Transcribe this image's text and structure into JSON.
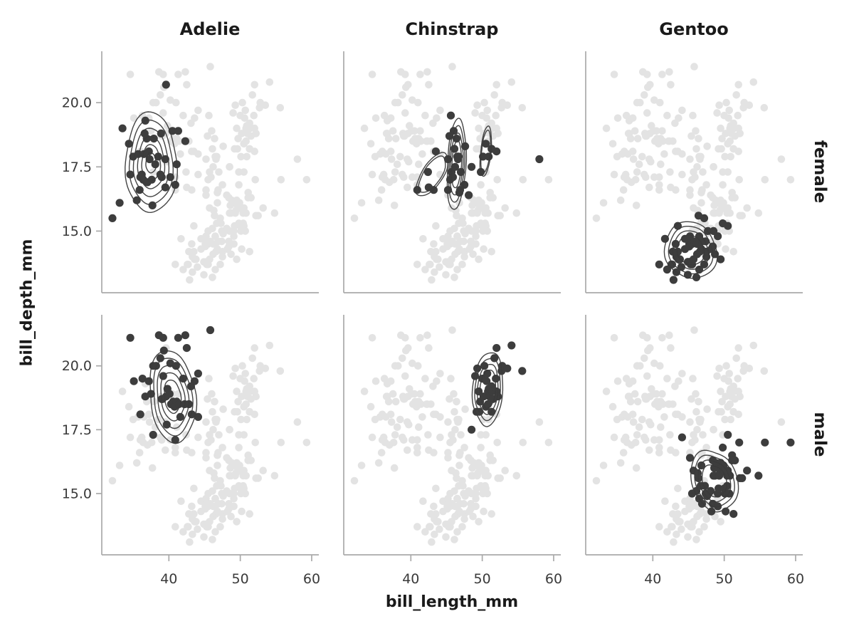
{
  "chart_data": {
    "type": "scatter",
    "title": "",
    "xlabel": "bill_length_mm",
    "ylabel": "bill_depth_mm",
    "col_facets": [
      "Adelie",
      "Chinstrap",
      "Gentoo"
    ],
    "row_facets": [
      "female",
      "male"
    ],
    "facet": {
      "columns": "species",
      "rows": "sex"
    },
    "xlim": [
      30.6,
      61.0
    ],
    "ylim": [
      12.6,
      22.0
    ],
    "xticks": [
      40,
      50,
      60
    ],
    "xtick_labels": [
      "40",
      "50",
      "60"
    ],
    "yticks": [
      20.0,
      17.5,
      15.0
    ],
    "ytick_labels": [
      "20.0",
      "17.5",
      "15.0"
    ],
    "grid": false,
    "legend": "none",
    "background_layer": "all penguins shown in light gray in every facet; facet subset overplotted dark with kde contours",
    "colors": {
      "background_point": "#e3e3e3",
      "highlight_point": "#3d3d3d",
      "contour": "#3a3a3a",
      "spine": "#aaaaaa",
      "tick_text": "#3a3a3a",
      "label_text": "#1a1a1a"
    },
    "groups": [
      {
        "species": "Adelie",
        "sex": "female",
        "points": [
          [
            32.1,
            15.5
          ],
          [
            33.1,
            16.1
          ],
          [
            33.5,
            19.0
          ],
          [
            34.4,
            18.4
          ],
          [
            34.6,
            17.2
          ],
          [
            35.0,
            17.9
          ],
          [
            35.5,
            16.2
          ],
          [
            35.7,
            18.0
          ],
          [
            35.9,
            16.6
          ],
          [
            36.0,
            17.1
          ],
          [
            36.2,
            17.2
          ],
          [
            36.4,
            17.0
          ],
          [
            36.5,
            18.0
          ],
          [
            36.6,
            18.8
          ],
          [
            36.7,
            19.3
          ],
          [
            36.9,
            18.6
          ],
          [
            37.0,
            16.9
          ],
          [
            37.2,
            18.1
          ],
          [
            37.3,
            17.8
          ],
          [
            37.6,
            17.0
          ],
          [
            37.7,
            16.0
          ],
          [
            37.9,
            18.6
          ],
          [
            38.1,
            17.6
          ],
          [
            38.5,
            17.9
          ],
          [
            38.8,
            17.2
          ],
          [
            38.9,
            18.8
          ],
          [
            39.0,
            17.1
          ],
          [
            39.5,
            16.7
          ],
          [
            39.5,
            17.8
          ],
          [
            39.6,
            20.7
          ],
          [
            40.2,
            17.1
          ],
          [
            40.5,
            18.9
          ],
          [
            40.9,
            16.8
          ],
          [
            41.1,
            17.6
          ],
          [
            41.3,
            18.9
          ],
          [
            42.3,
            18.5
          ]
        ],
        "contour_blobs": [
          {
            "cx": 37.5,
            "cy": 17.65,
            "rx": 3.6,
            "ry": 1.95,
            "rot": 3,
            "levels": 6,
            "w": 0.1
          }
        ]
      },
      {
        "species": "Chinstrap",
        "sex": "female",
        "points": [
          [
            40.9,
            16.6
          ],
          [
            42.4,
            17.3
          ],
          [
            42.5,
            16.7
          ],
          [
            43.2,
            16.6
          ],
          [
            43.5,
            18.1
          ],
          [
            45.2,
            16.6
          ],
          [
            45.2,
            17.8
          ],
          [
            45.4,
            18.7
          ],
          [
            45.5,
            17.0
          ],
          [
            45.6,
            19.5
          ],
          [
            45.7,
            17.3
          ],
          [
            45.9,
            17.1
          ],
          [
            46.0,
            18.9
          ],
          [
            46.1,
            18.2
          ],
          [
            46.2,
            17.5
          ],
          [
            46.4,
            18.6
          ],
          [
            46.5,
            17.9
          ],
          [
            46.6,
            17.8
          ],
          [
            46.7,
            17.9
          ],
          [
            46.8,
            16.5
          ],
          [
            46.9,
            16.6
          ],
          [
            47.0,
            17.3
          ],
          [
            47.5,
            16.8
          ],
          [
            47.6,
            18.3
          ],
          [
            48.1,
            16.4
          ],
          [
            48.5,
            17.5
          ],
          [
            49.8,
            17.3
          ],
          [
            50.1,
            17.9
          ],
          [
            50.5,
            18.4
          ],
          [
            50.9,
            17.9
          ],
          [
            51.3,
            18.2
          ],
          [
            52.0,
            18.1
          ],
          [
            58.0,
            17.8
          ]
        ],
        "contour_blobs": [
          {
            "cx": 43.0,
            "cy": 17.2,
            "rx": 1.5,
            "ry": 0.95,
            "rot": 35,
            "levels": 2,
            "w": 0.08
          },
          {
            "cx": 46.4,
            "cy": 17.6,
            "rx": 1.35,
            "ry": 1.7,
            "rot": 3,
            "levels": 4,
            "w": 0.09
          },
          {
            "cx": 50.5,
            "cy": 18.1,
            "rx": 0.75,
            "ry": 0.95,
            "rot": 6,
            "levels": 2,
            "w": 0.07
          }
        ]
      },
      {
        "species": "Gentoo",
        "sex": "female",
        "points": [
          [
            40.9,
            13.7
          ],
          [
            41.7,
            14.7
          ],
          [
            42.0,
            13.5
          ],
          [
            42.6,
            13.7
          ],
          [
            42.7,
            13.7
          ],
          [
            42.8,
            14.2
          ],
          [
            42.9,
            13.1
          ],
          [
            43.2,
            14.5
          ],
          [
            43.3,
            13.4
          ],
          [
            43.3,
            14.0
          ],
          [
            43.5,
            14.2
          ],
          [
            43.5,
            15.2
          ],
          [
            43.6,
            13.9
          ],
          [
            43.8,
            13.9
          ],
          [
            44.0,
            13.6
          ],
          [
            44.5,
            14.3
          ],
          [
            44.5,
            14.7
          ],
          [
            44.9,
            13.3
          ],
          [
            44.9,
            13.8
          ],
          [
            45.1,
            14.5
          ],
          [
            45.1,
            14.4
          ],
          [
            45.2,
            13.8
          ],
          [
            45.2,
            14.8
          ],
          [
            45.3,
            13.7
          ],
          [
            45.3,
            13.8
          ],
          [
            45.4,
            14.6
          ],
          [
            45.5,
            13.7
          ],
          [
            45.5,
            14.5
          ],
          [
            45.7,
            13.9
          ],
          [
            45.8,
            14.6
          ],
          [
            46.1,
            13.2
          ],
          [
            46.2,
            14.5
          ],
          [
            46.2,
            14.1
          ],
          [
            46.4,
            15.6
          ],
          [
            46.5,
            13.5
          ],
          [
            46.5,
            14.5
          ],
          [
            46.5,
            14.8
          ],
          [
            46.6,
            14.2
          ],
          [
            46.8,
            14.3
          ],
          [
            46.9,
            14.6
          ],
          [
            47.2,
            13.7
          ],
          [
            47.2,
            15.5
          ],
          [
            47.4,
            14.6
          ],
          [
            47.5,
            14.0
          ],
          [
            47.5,
            14.2
          ],
          [
            47.7,
            15.0
          ],
          [
            48.2,
            14.3
          ],
          [
            48.4,
            14.4
          ],
          [
            48.5,
            15.0
          ],
          [
            48.7,
            14.1
          ],
          [
            49.1,
            14.8
          ],
          [
            49.5,
            13.9
          ],
          [
            49.8,
            15.3
          ],
          [
            50.5,
            15.2
          ]
        ],
        "contour_blobs": [
          {
            "cx": 45.3,
            "cy": 14.25,
            "rx": 3.5,
            "ry": 1.15,
            "rot": -10,
            "levels": 4,
            "w": 0.09
          }
        ]
      },
      {
        "species": "Adelie",
        "sex": "male",
        "points": [
          [
            34.6,
            21.1
          ],
          [
            35.1,
            19.4
          ],
          [
            36.0,
            18.1
          ],
          [
            36.3,
            19.5
          ],
          [
            36.7,
            18.8
          ],
          [
            37.2,
            19.4
          ],
          [
            37.5,
            18.9
          ],
          [
            37.8,
            20.0
          ],
          [
            37.8,
            17.3
          ],
          [
            38.2,
            20.0
          ],
          [
            38.6,
            21.2
          ],
          [
            38.8,
            20.3
          ],
          [
            39.0,
            18.7
          ],
          [
            39.1,
            18.7
          ],
          [
            39.2,
            19.6
          ],
          [
            39.2,
            21.1
          ],
          [
            39.3,
            20.6
          ],
          [
            39.6,
            18.8
          ],
          [
            39.7,
            17.7
          ],
          [
            39.8,
            19.1
          ],
          [
            40.1,
            18.9
          ],
          [
            40.2,
            20.1
          ],
          [
            40.3,
            18.5
          ],
          [
            40.6,
            18.6
          ],
          [
            40.8,
            18.4
          ],
          [
            40.9,
            17.1
          ],
          [
            41.0,
            20.0
          ],
          [
            41.1,
            18.6
          ],
          [
            41.3,
            21.1
          ],
          [
            41.4,
            18.5
          ],
          [
            41.6,
            18.0
          ],
          [
            42.0,
            19.5
          ],
          [
            42.2,
            18.5
          ],
          [
            42.3,
            21.2
          ],
          [
            42.5,
            20.7
          ],
          [
            42.8,
            18.5
          ],
          [
            43.1,
            19.2
          ],
          [
            43.2,
            18.1
          ],
          [
            43.6,
            19.4
          ],
          [
            44.1,
            19.7
          ],
          [
            44.1,
            18.0
          ],
          [
            45.8,
            21.4
          ]
        ],
        "contour_blobs": [
          {
            "cx": 40.5,
            "cy": 18.8,
            "rx": 3.3,
            "ry": 1.75,
            "rot": -4,
            "levels": 5,
            "w": 0.1
          }
        ]
      },
      {
        "species": "Chinstrap",
        "sex": "male",
        "points": [
          [
            48.5,
            17.5
          ],
          [
            49.0,
            19.6
          ],
          [
            49.2,
            18.2
          ],
          [
            49.3,
            19.9
          ],
          [
            49.5,
            19.0
          ],
          [
            49.6,
            18.2
          ],
          [
            49.7,
            18.6
          ],
          [
            50.0,
            19.5
          ],
          [
            50.2,
            18.8
          ],
          [
            50.3,
            20.0
          ],
          [
            50.5,
            18.4
          ],
          [
            50.6,
            19.4
          ],
          [
            50.7,
            19.7
          ],
          [
            50.8,
            19.0
          ],
          [
            50.8,
            18.5
          ],
          [
            50.9,
            19.1
          ],
          [
            51.0,
            18.8
          ],
          [
            51.1,
            19.1
          ],
          [
            51.3,
            19.2
          ],
          [
            51.3,
            18.2
          ],
          [
            51.4,
            19.0
          ],
          [
            51.5,
            18.7
          ],
          [
            51.7,
            20.3
          ],
          [
            51.9,
            19.5
          ],
          [
            52.0,
            20.7
          ],
          [
            52.0,
            19.0
          ],
          [
            52.2,
            18.8
          ],
          [
            52.7,
            19.8
          ],
          [
            52.8,
            20.0
          ],
          [
            53.5,
            19.9
          ],
          [
            54.1,
            20.8
          ],
          [
            55.6,
            19.8
          ]
        ],
        "contour_blobs": [
          {
            "cx": 50.8,
            "cy": 19.1,
            "rx": 2.1,
            "ry": 1.45,
            "rot": 6,
            "levels": 4,
            "w": 0.09
          }
        ]
      },
      {
        "species": "Gentoo",
        "sex": "male",
        "points": [
          [
            44.1,
            17.2
          ],
          [
            45.2,
            16.4
          ],
          [
            45.5,
            15.0
          ],
          [
            45.7,
            15.9
          ],
          [
            46.1,
            15.1
          ],
          [
            46.3,
            15.8
          ],
          [
            46.4,
            15.6
          ],
          [
            46.5,
            14.8
          ],
          [
            46.7,
            15.3
          ],
          [
            46.8,
            16.1
          ],
          [
            46.9,
            14.6
          ],
          [
            47.3,
            15.3
          ],
          [
            47.4,
            15.0
          ],
          [
            47.6,
            14.9
          ],
          [
            47.8,
            15.0
          ],
          [
            48.1,
            15.1
          ],
          [
            48.2,
            14.3
          ],
          [
            48.4,
            14.6
          ],
          [
            48.4,
            16.3
          ],
          [
            48.5,
            15.7
          ],
          [
            48.6,
            16.0
          ],
          [
            48.7,
            15.7
          ],
          [
            48.8,
            16.2
          ],
          [
            49.0,
            16.1
          ],
          [
            49.1,
            15.0
          ],
          [
            49.1,
            14.5
          ],
          [
            49.2,
            15.2
          ],
          [
            49.3,
            15.7
          ],
          [
            49.4,
            15.8
          ],
          [
            49.5,
            16.2
          ],
          [
            49.6,
            16.0
          ],
          [
            49.8,
            15.9
          ],
          [
            49.8,
            16.8
          ],
          [
            49.9,
            16.1
          ],
          [
            50.0,
            15.2
          ],
          [
            50.0,
            15.9
          ],
          [
            50.1,
            15.0
          ],
          [
            50.2,
            14.3
          ],
          [
            50.4,
            15.7
          ],
          [
            50.4,
            15.3
          ],
          [
            50.5,
            15.9
          ],
          [
            50.5,
            17.3
          ],
          [
            50.7,
            15.0
          ],
          [
            50.8,
            15.7
          ],
          [
            51.1,
            16.3
          ],
          [
            51.1,
            16.5
          ],
          [
            51.3,
            14.2
          ],
          [
            51.5,
            16.3
          ],
          [
            52.1,
            17.0
          ],
          [
            52.2,
            15.6
          ],
          [
            52.5,
            15.6
          ],
          [
            53.2,
            15.9
          ],
          [
            54.8,
            15.7
          ],
          [
            55.7,
            17.0
          ],
          [
            59.3,
            17.0
          ]
        ],
        "contour_blobs": [
          {
            "cx": 48.6,
            "cy": 15.5,
            "rx": 3.1,
            "ry": 1.25,
            "rot": -14,
            "levels": 4,
            "w": 0.09
          }
        ]
      }
    ]
  }
}
